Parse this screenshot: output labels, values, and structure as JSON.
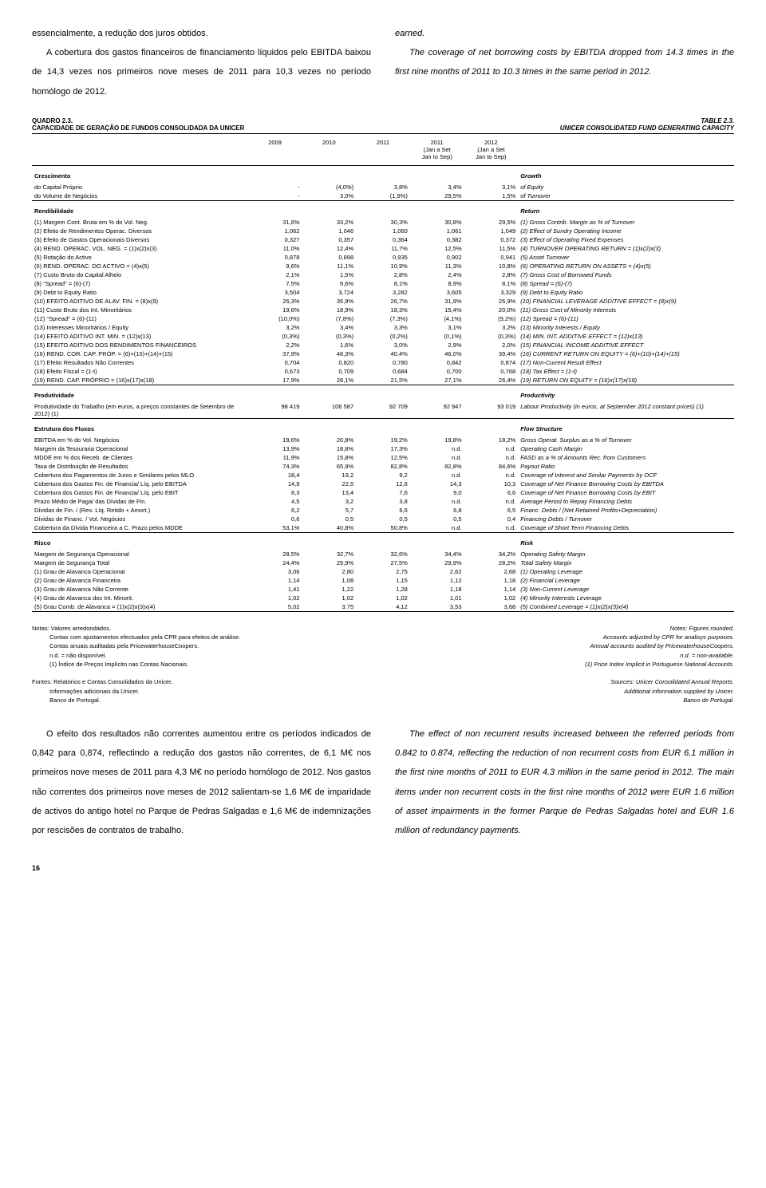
{
  "intro": {
    "pt1": "essencialmente, a redução dos juros obtidos.",
    "pt2": "A cobertura dos gastos financeiros de financiamento líquidos pelo EBITDA baixou de 14,3 vezes nos primeiros nove meses de 2011 para 10,3 vezes no período homólogo de 2012.",
    "en1": "earned.",
    "en2": "The coverage of net borrowing costs by EBITDA dropped from 14.3 times in the first nine months of 2011 to 10.3 times in the same period in 2012."
  },
  "theader": {
    "l1": "QUADRO 2.3.",
    "l2": "CAPACIDADE DE GERAÇÃO DE FUNDOS CONSOLIDADA DA UNICER",
    "r1": "TABLE 2.3.",
    "r2": "UNICER CONSOLIDATED FUND GENERATING CAPACITY"
  },
  "cols": {
    "c2009": "2009",
    "c2010": "2010",
    "c2011": "2011",
    "c2011p": "2011\n(Jan a Set\nJan to Sep)",
    "c2012p": "2012\n(Jan a Set\nJan to Sep)"
  },
  "sections": [
    {
      "pt": "Crescimento",
      "en": "Growth",
      "rows": [
        {
          "pt": "do Capital Próprio",
          "en": "of Equity",
          "v": [
            "-",
            "(4,0%)",
            "3,8%",
            "3,4%",
            "3,1%"
          ]
        },
        {
          "pt": "do Volume de Negócios",
          "en": "of Turnover",
          "v": [
            "-",
            "3,0%",
            "(1,9%)",
            "29,5%",
            "1,5%"
          ]
        }
      ]
    },
    {
      "pt": "Rendibilidade",
      "en": "Return",
      "rows": [
        {
          "pt": "(1)    Margem Cont. Bruta em % do Vol. Neg.",
          "en": "(1) Gross Contrib. Margin as % of Turnover",
          "v": [
            "31,6%",
            "33,2%",
            "30,3%",
            "30,8%",
            "29,5%"
          ]
        },
        {
          "pt": "(2)    Efeito de Rendimentos Operac. Diversos",
          "en": "(2) Effect of Sundry Operating Income",
          "v": [
            "1,062",
            "1,046",
            "1,060",
            "1,061",
            "1,049"
          ]
        },
        {
          "pt": "(3)    Efeito de Gastos Operacionais Diversos",
          "en": "(3) Effect of Operating Fixed Expenses",
          "v": [
            "0,327",
            "0,357",
            "0,364",
            "0,382",
            "0,372"
          ]
        },
        {
          "pt": "(4)  REND. OPERAC. VOL. NEG. = (1)x(2)x(3)",
          "en": "(4) TURNOVER OPERATING RETURN = (1)x(2)x(3)",
          "v": [
            "11,0%",
            "12,4%",
            "11,7%",
            "12,5%",
            "11,5%"
          ]
        },
        {
          "pt": "(5)    Rotação do Activo",
          "en": "(5) Asset Turnover",
          "v": [
            "0,878",
            "0,898",
            "0,935",
            "0,902",
            "0,941"
          ]
        },
        {
          "pt": "(6)  REND. OPERAC. DO ACTIVO = (4)x(5)",
          "en": "(6) OPERATING RETURN ON ASSETS = (4)x(5)",
          "v": [
            "9,6%",
            "11,1%",
            "10,9%",
            "11,3%",
            "10,8%"
          ]
        },
        {
          "pt": "(7)    Custo Bruto do Capital Alheio",
          "en": "(7) Gross Cost of Borrowed Funds",
          "v": [
            "2,1%",
            "1,5%",
            "2,8%",
            "2,4%",
            "2,8%"
          ]
        },
        {
          "pt": "(8)    \"Spread\" = (6)-(7)",
          "en": "(8) Spread = (6)-(7)",
          "v": [
            "7,5%",
            "9,6%",
            "8,1%",
            "8,9%",
            "8,1%"
          ]
        },
        {
          "pt": "(9)    Debt to Equity Ratio",
          "en": "(9) Debt to Equity Ratio",
          "v": [
            "3,504",
            "3,724",
            "3,282",
            "3,605",
            "3,329"
          ]
        },
        {
          "pt": "(10) EFEITO ADITIVO DE ALAV. FIN. = (8)x(9)",
          "en": "(10) FINANCIAL LEVERAGE ADDITIVE EFFECT = (8)x(9)",
          "v": [
            "26,3%",
            "35,9%",
            "26,7%",
            "31,9%",
            "26,9%"
          ]
        },
        {
          "pt": "(11)  Custo Bruto dos Int. Minoritários",
          "en": "(11) Gross Cost of Minority Interests",
          "v": [
            "19,6%",
            "18,9%",
            "18,3%",
            "15,4%",
            "20,0%"
          ]
        },
        {
          "pt": "(12)  \"Spread\" = (6)-(11)",
          "en": "(12) Spread = (6)-(11)",
          "v": [
            "(10,0%)",
            "(7,8%)",
            "(7,3%)",
            "(4,1%)",
            "(9,2%)"
          ]
        },
        {
          "pt": "(13)  Interesses Minoritários / Equity",
          "en": "(13) Minority Interests / Equity",
          "v": [
            "3,2%",
            "3,4%",
            "3,3%",
            "3,1%",
            "3,2%"
          ]
        },
        {
          "pt": "(14) EFEITO ADITIVO INT. MIN. = (12)x(13)",
          "en": "(14) MIN. INT. ADDITIVE EFFECT = (12)x(13)",
          "v": [
            "(0,3%)",
            "(0,3%)",
            "(0,2%)",
            "(0,1%)",
            "(0,3%)"
          ]
        },
        {
          "pt": "(15) EFEITO ADITIVO DOS RENDIMENTOS FINANCEIROS",
          "en": "(15) FINANCIAL INCOME ADDITIVE EFFECT",
          "v": [
            "2,2%",
            "1,6%",
            "3,0%",
            "2,9%",
            "2,0%"
          ]
        },
        {
          "pt": "(16) REND. COR. CAP. PRÓP. = (6)+(10)+(14)+(15)",
          "en": "(16) CURRENT RETURN ON EQUITY = (6)+(10)+(14)+(15)",
          "v": [
            "37,9%",
            "48,3%",
            "40,4%",
            "46,0%",
            "39,4%"
          ]
        },
        {
          "pt": "(17)  Efeito Resultados Não Correntes",
          "en": "(17)  Non-Current Result Effect",
          "v": [
            "0,704",
            "0,820",
            "0,780",
            "0,842",
            "0,874"
          ]
        },
        {
          "pt": "(18)  Efeito Fiscal = (1-t)",
          "en": "(18)  Tax Effect = (1-t)",
          "v": [
            "0,673",
            "0,709",
            "0,684",
            "0,700",
            "0,768"
          ]
        },
        {
          "pt": "(19) REND. CAP. PRÓPRIO = (16)x(17)x(18)",
          "en": "(19) RETURN ON EQUITY = (16)x(17)x(18)",
          "v": [
            "17,9%",
            "28,1%",
            "21,5%",
            "27,1%",
            "26,4%"
          ]
        }
      ]
    },
    {
      "pt": "Produtividade",
      "en": "Productivity",
      "rows": [
        {
          "pt": "Produtividade do Trabalho   (em euros, a preços constantes de Setembro de 2012) (1)",
          "en": "Labour Productivity   (in euros, at September 2012 constant prices) (1)",
          "v": [
            "98 419",
            "106 587",
            "92 709",
            "92 947",
            "93 019"
          ]
        }
      ]
    },
    {
      "pt": "Estrutura dos Fluxos",
      "en": "Flow Structure",
      "rows": [
        {
          "pt": "EBITDA em % do Vol. Negócios",
          "en": "Gross Operat. Surplus as a % of Turnover",
          "v": [
            "19,6%",
            "20,8%",
            "19,2%",
            "19,8%",
            "18,2%"
          ]
        },
        {
          "pt": "Margem da Tesouraria Operacional",
          "en": "Operating Cash Margin",
          "v": [
            "13,9%",
            "18,8%",
            "17,3%",
            "n.d.",
            "n.d."
          ]
        },
        {
          "pt": "MDDE em % dos Receb. de Clientes",
          "en": "FASD as a % of Amounts Rec. from Customers",
          "v": [
            "11,9%",
            "15,8%",
            "12,5%",
            "n.d.",
            "n.d."
          ]
        },
        {
          "pt": "Taxa de Distribuição de Resultados",
          "en": "Payout Ratio",
          "v": [
            "74,3%",
            "65,9%",
            "82,8%",
            "82,8%",
            "84,6%"
          ]
        },
        {
          "pt": "Cobertura dos Pagamentos de Juros e Similares pelos MLO",
          "en": "Coverage of Interest and Similar Payments by OCF",
          "v": [
            "18,4",
            "19,2",
            "9,2",
            "n.d.",
            "n.d."
          ]
        },
        {
          "pt": "Cobertura dos Gastos Fin. de Financia/ Líq. pelo EBITDA",
          "en": "Coverage of Net Finance Borrowing Costs by EBITDA",
          "v": [
            "14,9",
            "22,5",
            "12,6",
            "14,3",
            "10,3"
          ]
        },
        {
          "pt": "Cobertura dos Gastos Fin. de Financia/ Líq. pelo EBIT",
          "en": "Coverage of Net Finance Borrowing Costs by EBIT",
          "v": [
            "8,3",
            "13,4",
            "7,6",
            "9,0",
            "6,6"
          ]
        },
        {
          "pt": "Prazo Médio de Paga/ das Dívidas de Fin.",
          "en": "Average Period to Repay Financing Debts",
          "v": [
            "4,5",
            "3,2",
            "3,8",
            "n.d.",
            "n.d."
          ]
        },
        {
          "pt": "Dívidas de Fin. / (Res. Líq. Retido + Amort.)",
          "en": "Financ. Debts / (Net Retained Profits+Depreciation)",
          "v": [
            "6,2",
            "5,7",
            "6,6",
            "6,8",
            "6,5"
          ]
        },
        {
          "pt": "Dívidas de Financ. / Vol. Negócios",
          "en": "Financing Debts / Turnover",
          "v": [
            "0,6",
            "0,5",
            "0,5",
            "0,5",
            "0,4"
          ]
        },
        {
          "pt": "Cobertura da Dívida Financeira a C. Prazo pelos MDDE",
          "en": "Coverage of Short Term Financing Debts",
          "v": [
            "53,1%",
            "40,8%",
            "50,8%",
            "n.d.",
            "n.d."
          ]
        }
      ]
    },
    {
      "pt": "Risco",
      "en": "Risk",
      "rows": [
        {
          "pt": "Margem de Segurança Operacional",
          "en": "Operating Safety Margin",
          "v": [
            "28,5%",
            "32,7%",
            "32,6%",
            "34,4%",
            "34,2%"
          ]
        },
        {
          "pt": "Margem de Segurança Total",
          "en": "Total Safety Margin",
          "v": [
            "24,4%",
            "29,9%",
            "27,5%",
            "29,9%",
            "28,2%"
          ]
        },
        {
          "pt": "(1) Grau de Alavanca Operacional",
          "en": "(1) Operating Leverage",
          "v": [
            "3,06",
            "2,80",
            "2,75",
            "2,62",
            "2,68"
          ]
        },
        {
          "pt": "(2) Grau de Alavanca Financeira",
          "en": "(2) Financial Leverage",
          "v": [
            "1,14",
            "1,08",
            "1,15",
            "1,12",
            "1,18"
          ]
        },
        {
          "pt": "(3) Grau de Alavanca Não Corrente",
          "en": "(3) Non-Current Leverage",
          "v": [
            "1,41",
            "1,22",
            "1,28",
            "1,18",
            "1,14"
          ]
        },
        {
          "pt": "(4) Grau de Alavanca dos Int. Minorit.",
          "en": "(4) Minority Interests Leverage",
          "v": [
            "1,02",
            "1,02",
            "1,02",
            "1,01",
            "1,02"
          ]
        },
        {
          "pt": "(5) Grau Comb. de Alavanca = (1)x(2)x(3)x(4)",
          "en": "(5) Combined Leverage = (1)x(2)x(3)x(4)",
          "v": [
            "5,02",
            "3,75",
            "4,12",
            "3,53",
            "3,68"
          ]
        }
      ]
    }
  ],
  "notes": {
    "pt": [
      "Notas: Valores arredondados.",
      "Contas com ajustamentos efectuados pela CPR para efeitos de análise.",
      "Contas anuais auditadas pela PricewaterhouseCoopers.",
      "n.d. = não disponível.",
      "(1) Índice de Preços Implícito nas Contas Nacionais."
    ],
    "en": [
      "Notes:  Figures rounded.",
      "Accounts adjusted by CPR for analisys purposes.",
      "Annual accounts audited by PricewaterhouseCoopers.",
      "n.d. = non-available.",
      "(1) Price Index Implicit in Portuguese National Accounts."
    ],
    "src_pt": [
      "Fontes: Relatórios e Contas Consolidados da Unicer.",
      "Informações adicionais da Unicer.",
      "Banco de Portugal."
    ],
    "src_en": [
      "Sources: Unicer Consolidated Annual Reports.",
      "Additional information supplied by Unicer.",
      "Banco de Portugal."
    ]
  },
  "outro": {
    "pt": "O efeito dos resultados não correntes aumentou entre os períodos indicados de 0,842 para 0,874, reflectindo a redução dos gastos não correntes, de 6,1 M€ nos primeiros nove meses de 2011 para 4,3 M€ no período homólogo de 2012. Nos gastos não correntes dos primeiros nove meses de 2012 salientam-se 1,6 M€ de imparidade de activos do antigo hotel no Parque de Pedras Salgadas e 1,6 M€ de indemnizações por rescisões de contratos de trabalho.",
    "en": "The effect of non recurrent results increased between the referred periods from 0.842 to 0.874, reflecting the reduction of non recurrent costs from EUR 6.1 million in the first nine months of 2011 to EUR 4.3 million in the same period in 2012. The main items under non recurrent costs in the first nine months of 2012 were EUR 1.6 million of asset impairments in the former Parque de Pedras Salgadas hotel and EUR 1.6 million of redundancy payments."
  },
  "page": "16"
}
